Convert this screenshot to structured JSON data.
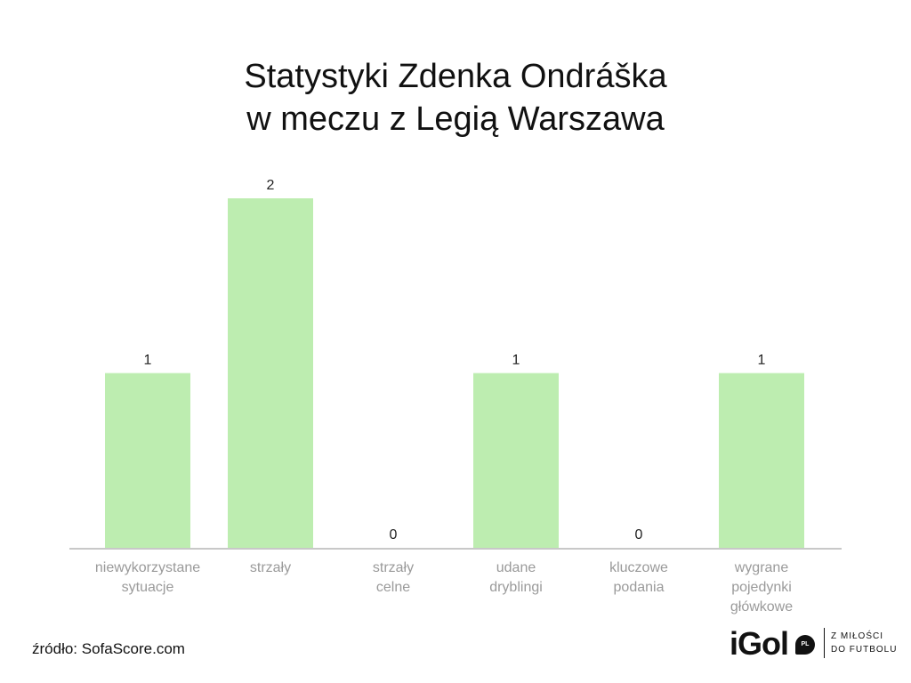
{
  "chart_data": {
    "type": "bar",
    "title_lines": [
      "Statystyki Zdenka Ondráška",
      "w meczu z Legią Warszawa"
    ],
    "categories": [
      "niewykorzystane\nsytuacje",
      "strzały",
      "strzały\ncelne",
      "udane\ndryblingi",
      "kluczowe\npodania",
      "wygrane\npojedynki\ngłówkowe"
    ],
    "values": [
      1,
      2,
      0,
      1,
      0,
      1
    ],
    "data_labels": [
      "1",
      "2",
      "0",
      "1",
      "0",
      "1"
    ],
    "ylim": [
      0,
      2
    ],
    "grid": false,
    "legend": "none",
    "bar_color": "#bdedb0",
    "axis_color": "#c8c8c8",
    "label_color": "#9a9a9a"
  },
  "source": "źródło: SofaScore.com",
  "logo": {
    "word": "iGol",
    "badge": "PL",
    "tagline_lines": [
      "Z MIŁOŚCI",
      "DO FUTBOLU"
    ]
  }
}
